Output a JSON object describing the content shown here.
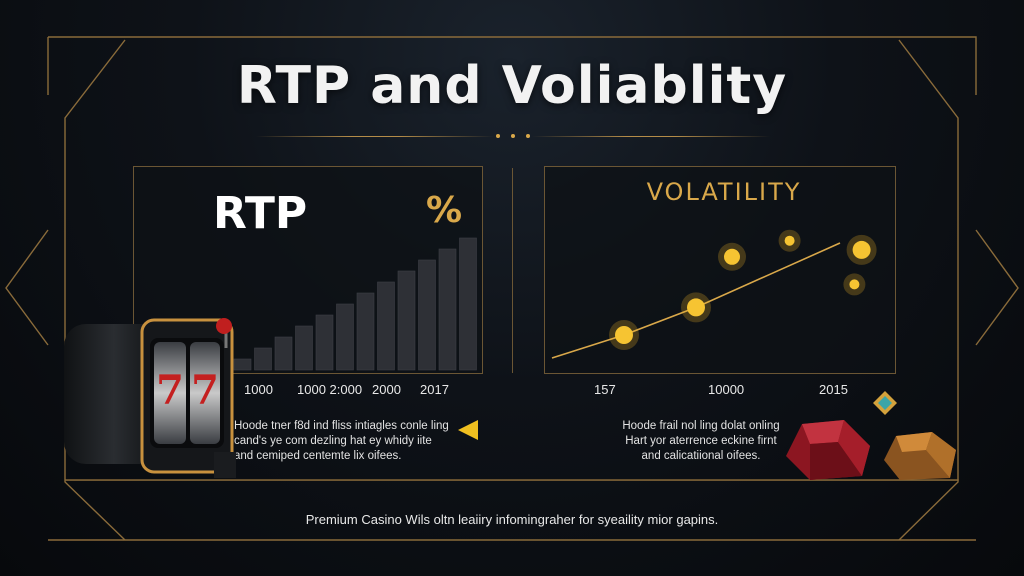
{
  "title": "RTP and Voliablity",
  "rtp_panel": {
    "heading": "RTP",
    "percent_symbol": "%",
    "x_labels": [
      "1000",
      "1000 2:000",
      "2000",
      "2017"
    ],
    "caption_lines": [
      "Hoode tner f8d ind fliss intiagles conle ling",
      "cand's ye com dezling hat ey whidy iite",
      "and cemiped centemte lix oifees."
    ]
  },
  "volatility_panel": {
    "heading": "VOLATILITY",
    "x_labels": [
      "157",
      "10000",
      "2015"
    ],
    "caption_lines": [
      "Hoode frail nol ling dolat onling",
      "Hart yor aterrence eckine firnt",
      "and calicatiional oifees."
    ]
  },
  "footer": "Premium Casino Wils oltn leaiiry infomingraher for syeaility mior gapins.",
  "colors": {
    "gold": "#d9a84a",
    "frame": "#8a6b3a",
    "bars": "#2e3036",
    "gem_red": "#a51e2a",
    "gem_bronze": "#b0702a",
    "gem_teal": "#3aa5a8"
  },
  "chart_data": [
    {
      "type": "bar",
      "values": [
        1,
        2,
        3,
        4,
        5,
        6,
        7,
        8,
        9,
        10,
        11,
        12
      ]
    },
    {
      "type": "line",
      "line": [
        [
          0,
          0
        ],
        [
          1,
          1
        ],
        [
          2,
          2.2
        ],
        [
          3,
          3.6
        ],
        [
          4,
          5
        ]
      ],
      "points": [
        [
          1,
          1
        ],
        [
          2,
          2.2
        ],
        [
          2.5,
          4.4
        ],
        [
          3.3,
          5.1
        ],
        [
          4.2,
          3.2
        ],
        [
          4.3,
          4.7
        ]
      ]
    }
  ]
}
